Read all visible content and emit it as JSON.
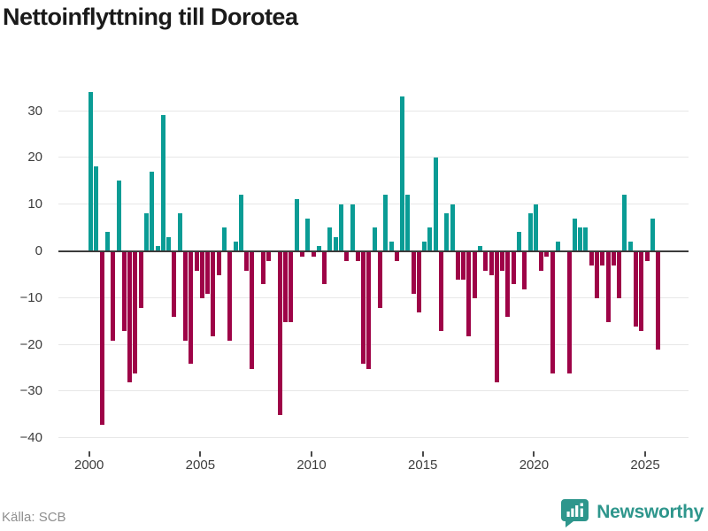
{
  "title": "Nettoinflyttning till Dorotea",
  "source": "Källa: SCB",
  "branding": {
    "name": "Newsworthy",
    "color": "#2e968c"
  },
  "colors": {
    "positive": "#0a9c95",
    "negative": "#9e0347",
    "grid": "#e7e7e7",
    "zero_line": "#3b3b3b",
    "axis_text": "#3d3d3d",
    "title_text": "#1a1a1a",
    "source_text": "#8f8f8f"
  },
  "chart_data": {
    "type": "bar",
    "title": "Nettoinflyttning till Dorotea",
    "frequency": "quarterly",
    "start_period": "2000 Q1",
    "end_period": "2025 Q3",
    "values": [
      34,
      18,
      -37,
      4,
      -19,
      15,
      -17,
      -28,
      -26,
      -12,
      8,
      17,
      1,
      29,
      3,
      -14,
      8,
      -19,
      -24,
      -4,
      -10,
      -9,
      -18,
      -5,
      5,
      -19,
      2,
      12,
      -4,
      -25,
      0,
      -7,
      -2,
      0,
      -35,
      -15,
      -15,
      11,
      -1,
      7,
      -1,
      1,
      -7,
      5,
      3,
      10,
      -2,
      10,
      -2,
      -24,
      -25,
      5,
      -12,
      12,
      2,
      -2,
      33,
      12,
      -9,
      -13,
      2,
      5,
      20,
      -17,
      8,
      10,
      -6,
      -6,
      -18,
      -10,
      1,
      -4,
      -5,
      -28,
      -4,
      -14,
      -7,
      4,
      -8,
      8,
      10,
      -4,
      -1,
      -26,
      2,
      0,
      -26,
      7,
      5,
      5,
      -3,
      -10,
      -3,
      -15,
      -3,
      -10,
      12,
      2,
      -16,
      -17,
      -2,
      7,
      -21
    ],
    "x_tick_labels": [
      "2000",
      "2005",
      "2010",
      "2015",
      "2020",
      "2025"
    ],
    "y_ticks": [
      30,
      20,
      10,
      0,
      -10,
      -20,
      -30,
      -40
    ],
    "y_tick_labels": [
      "30",
      "20",
      "10",
      "0",
      "−10",
      "−20",
      "−30",
      "−40"
    ],
    "ylim": [
      -40,
      35
    ],
    "grid": true,
    "legend": false
  }
}
